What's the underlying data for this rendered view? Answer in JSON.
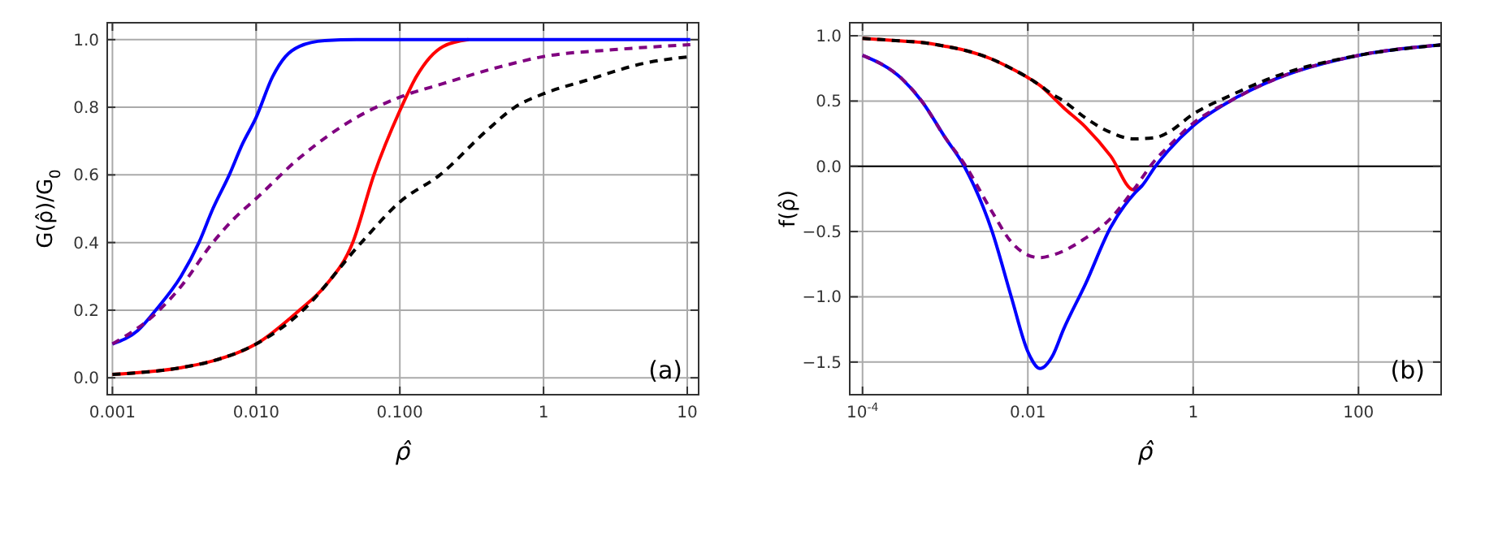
{
  "chart_data": [
    {
      "type": "line",
      "xlabel": "ρ̂",
      "ylabel": "G(ρ̂)/G$_{0}$",
      "log": "x",
      "grid": true,
      "xlim": [
        0.00092,
        12
      ],
      "ylim": [
        -0.05,
        1.05
      ],
      "xticks": [
        {
          "value": 0.001,
          "label": "0.001"
        },
        {
          "value": 0.01,
          "label": "0.010"
        },
        {
          "value": 0.1,
          "label": "0.100"
        },
        1,
        10
      ],
      "yticks": [
        {
          "value": 0,
          "label": "0.0"
        },
        {
          "value": 0.2,
          "label": "0.2"
        },
        {
          "value": 0.4,
          "label": "0.4"
        },
        {
          "value": 0.6,
          "label": "0.6"
        },
        {
          "value": 0.8,
          "label": "0.8"
        },
        {
          "value": 1,
          "label": "1.0"
        }
      ],
      "annotations": [
        "(a)"
      ],
      "series": [
        {
          "color": "#ff0000",
          "line_style": "solid",
          "x": [
            0.001,
            0.003,
            0.005,
            0.01,
            0.02,
            0.03,
            0.047,
            0.066,
            0.1,
            0.13,
            0.2,
            0.3
          ],
          "values": [
            0.01,
            0.03,
            0.05,
            0.1,
            0.2,
            0.27,
            0.4,
            0.6,
            0.79,
            0.89,
            0.98,
            1.0
          ]
        },
        {
          "color": "#0000ff",
          "line_style": "solid",
          "x": [
            0.001,
            0.0015,
            0.002,
            0.003,
            0.004,
            0.005,
            0.0065,
            0.008,
            0.01,
            0.013,
            0.016,
            0.02,
            0.03,
            0.05,
            10.5
          ],
          "values": [
            0.1,
            0.14,
            0.2,
            0.3,
            0.4,
            0.5,
            0.6,
            0.69,
            0.77,
            0.89,
            0.95,
            0.98,
            0.997,
            1.0,
            1.0
          ]
        },
        {
          "color": "#800080",
          "line_style": "dashed",
          "x": [
            0.001,
            0.002,
            0.003,
            0.005,
            0.007,
            0.01,
            0.02,
            0.05,
            0.1,
            0.2,
            0.5,
            1,
            3,
            10.5
          ],
          "values": [
            0.1,
            0.19,
            0.27,
            0.4,
            0.47,
            0.53,
            0.65,
            0.77,
            0.83,
            0.87,
            0.92,
            0.95,
            0.97,
            0.985
          ]
        },
        {
          "color": "#000000",
          "line_style": "dashed",
          "x": [
            0.001,
            0.003,
            0.005,
            0.01,
            0.02,
            0.054,
            0.1,
            0.19,
            0.4,
            0.63,
            1,
            2,
            5,
            10.5
          ],
          "values": [
            0.01,
            0.03,
            0.05,
            0.1,
            0.19,
            0.4,
            0.52,
            0.6,
            0.73,
            0.8,
            0.84,
            0.88,
            0.93,
            0.95
          ]
        }
      ]
    },
    {
      "type": "line",
      "xlabel": "ρ̂",
      "ylabel": "f(ρ̂)",
      "log": "x",
      "grid": true,
      "xlim": [
        7e-05,
        1000
      ],
      "ylim": [
        -1.75,
        1.1
      ],
      "xticks": [
        {
          "value": 0.0001,
          "label": "10$^{-4}$"
        },
        0.01,
        1,
        100
      ],
      "yticks": [
        {
          "value": -1.5,
          "label": "−1.5"
        },
        {
          "value": -1,
          "label": "−1.0"
        },
        {
          "value": -0.5,
          "label": "−0.5"
        },
        {
          "value": 0,
          "label": "0.0"
        },
        {
          "value": 0.5,
          "label": "0.5"
        },
        {
          "value": 1,
          "label": "1.0"
        }
      ],
      "ref_lines": [
        {
          "axis": "y",
          "value": 0,
          "color": "#000000"
        }
      ],
      "annotations": [
        "(b)"
      ],
      "series": [
        {
          "color": "#ff0000",
          "line_style": "solid",
          "x": [
            0.0001,
            0.0003,
            0.0005,
            0.001,
            0.0017,
            0.0037,
            0.0063,
            0.01,
            0.014,
            0.02,
            0.027,
            0.05,
            0.1,
            0.19,
            0.24
          ],
          "values": [
            0.98,
            0.96,
            0.95,
            0.92,
            0.89,
            0.82,
            0.75,
            0.68,
            0.62,
            0.53,
            0.45,
            0.3,
            0.08,
            -0.18,
            -0.15
          ]
        },
        {
          "color": "#0000ff",
          "line_style": "solid",
          "x": [
            0.0001,
            0.0003,
            0.00052,
            0.001,
            0.0017,
            0.0037,
            0.0063,
            0.01,
            0.014,
            0.02,
            0.027,
            0.05,
            0.1,
            0.2,
            0.24,
            0.35,
            0.5,
            1,
            2.8,
            10,
            100,
            1000
          ],
          "values": [
            0.85,
            0.67,
            0.5,
            0.22,
            0.0,
            -0.5,
            -1.0,
            -1.42,
            -1.55,
            -1.45,
            -1.25,
            -0.9,
            -0.47,
            -0.2,
            -0.15,
            0.0,
            0.12,
            0.31,
            0.5,
            0.67,
            0.85,
            0.93
          ]
        },
        {
          "color": "#800080",
          "line_style": "dashed",
          "x": [
            0.0001,
            0.0003,
            0.00052,
            0.001,
            0.0017,
            0.0037,
            0.0063,
            0.01,
            0.014,
            0.02,
            0.05,
            0.1,
            0.19,
            0.35,
            0.5,
            1,
            2.8,
            10,
            100,
            1000
          ],
          "values": [
            0.85,
            0.67,
            0.5,
            0.22,
            0.02,
            -0.35,
            -0.58,
            -0.68,
            -0.7,
            -0.68,
            -0.55,
            -0.4,
            -0.18,
            0.05,
            0.15,
            0.33,
            0.5,
            0.67,
            0.85,
            0.93
          ]
        },
        {
          "color": "#000000",
          "line_style": "dashed",
          "x": [
            0.0001,
            0.0003,
            0.0005,
            0.001,
            0.0017,
            0.0037,
            0.0063,
            0.01,
            0.014,
            0.02,
            0.027,
            0.05,
            0.1,
            0.19,
            0.35,
            0.5,
            1,
            3,
            10,
            100,
            1000
          ],
          "values": [
            0.98,
            0.96,
            0.95,
            0.92,
            0.89,
            0.82,
            0.75,
            0.68,
            0.62,
            0.55,
            0.5,
            0.37,
            0.26,
            0.21,
            0.22,
            0.26,
            0.4,
            0.55,
            0.69,
            0.85,
            0.93
          ]
        }
      ]
    }
  ]
}
